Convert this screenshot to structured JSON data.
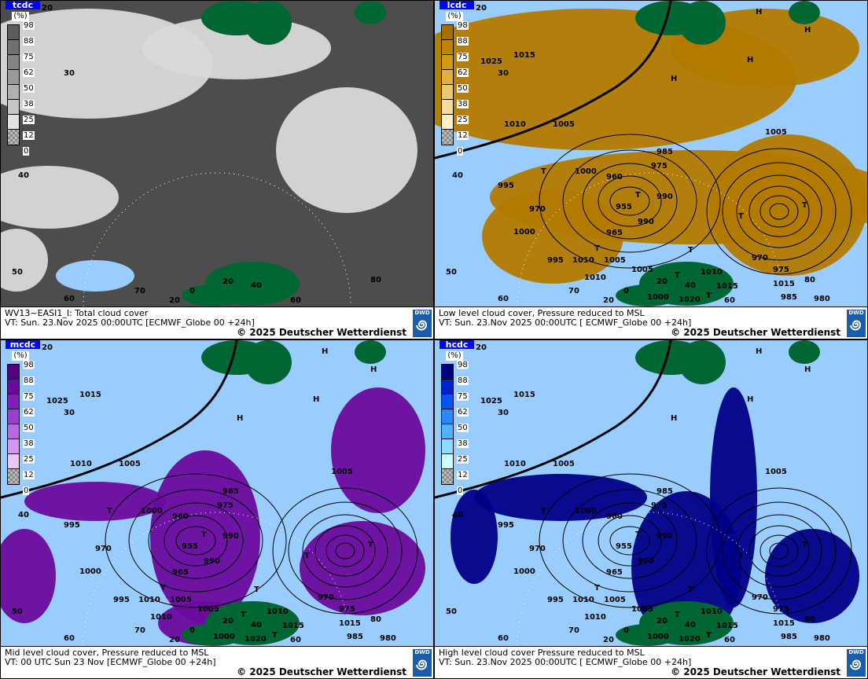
{
  "panels": [
    {
      "id": "tcdc",
      "legend_title": "tcdc",
      "unit": "(%)",
      "line1": "WV13~EASI1_I: Total cloud cover",
      "line2": "VT: Sun. 23.Nov 2025 00:00UTC [ECMWF_Globe 00  +24h]",
      "copyright": "© 2025 Deutscher Wetterdienst",
      "bg": "#4d4d4d",
      "cloud": "#d9d9d9",
      "colors": [
        "#5c5c5c",
        "#707070",
        "#858585",
        "#9a9a9a",
        "#b0b0b0",
        "#c6c6c6",
        "#e2e2e2"
      ],
      "isobars": false
    },
    {
      "id": "lcdc",
      "legend_title": "lcdc",
      "unit": "(%)",
      "line1": "Low level cloud cover, Pressure reduced to MSL",
      "line2": "VT: Sun. 23.Nov 2025 00:00UTC [ ECMWF_Globe 00  +24h]",
      "copyright": "© 2025 Deutscher Wetterdienst",
      "bg": "#99ccff",
      "cloud": "#b37a00",
      "colors": [
        "#a86f00",
        "#bf8400",
        "#d19a14",
        "#e0b040",
        "#ecc870",
        "#f5dc9c",
        "#fff0cc"
      ],
      "isobars": true
    },
    {
      "id": "mcdc",
      "legend_title": "mcdc",
      "unit": "(%)",
      "line1": "Mid level cloud cover, Pressure reduced to MSL",
      "line2": "VT: 00 UTC Sun  23 Nov [ECMWF_Globe 00 +24h]",
      "copyright": "© 2025 Deutscher Wetterdienst",
      "bg": "#99ccff",
      "cloud": "#6a0a9e",
      "colors": [
        "#55007f",
        "#6a0a9e",
        "#8020b8",
        "#9a40d0",
        "#b868e0",
        "#d498ee",
        "#ecc8fa"
      ],
      "isobars": true
    },
    {
      "id": "hcdc",
      "legend_title": "hcdc",
      "unit": "(%)",
      "line1": "High level cloud cover Pressure reduced to MSL",
      "line2": "VT: Sun. 23.Nov 2025 00:00UTC [ ECMWF_Globe 00  +24h]",
      "copyright": "© 2025 Deutscher Wetterdienst",
      "bg": "#99ccff",
      "cloud": "#000088",
      "colors": [
        "#000080",
        "#0022cc",
        "#0055ff",
        "#2a88ff",
        "#55b0ff",
        "#90dcff",
        "#ccffff"
      ],
      "isobars": true
    }
  ],
  "legend_ticks": [
    "98",
    "88",
    "75",
    "62",
    "50",
    "38",
    "25",
    "12",
    "0"
  ],
  "logo_text": "DWD",
  "grid_labels": [
    "20",
    "30",
    "40",
    "50",
    "60",
    "70",
    "20",
    "0",
    "20",
    "40",
    "60",
    "80"
  ],
  "pressure_labels": [
    "1025",
    "1015",
    "1010",
    "1005",
    "1000",
    "995",
    "990",
    "985",
    "975",
    "970",
    "975",
    "980",
    "985",
    "970",
    "960",
    "955",
    "965",
    "990",
    "1005",
    "1010",
    "1000",
    "995",
    "1005",
    "1010",
    "1015",
    "1020",
    "1000",
    "1015",
    "1010",
    "1005"
  ],
  "highs_lows": [
    "H",
    "H",
    "H",
    "T",
    "T",
    "T",
    "T",
    "T",
    "T",
    "T",
    "T",
    "H"
  ],
  "colors": {
    "land": "#006633",
    "ocean": "#99ccff"
  }
}
